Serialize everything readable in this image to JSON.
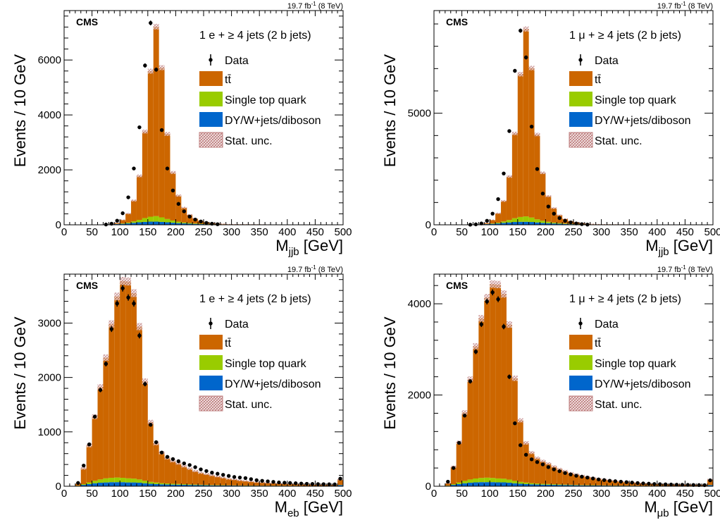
{
  "colors": {
    "ttbar": "#CC6600",
    "singletop": "#99CC00",
    "dyw": "#0066CC",
    "statunc": "#BF7F7F",
    "data": "#000000"
  },
  "legend": {
    "data": "Data",
    "ttbar": "tt̄",
    "singletop": "Single top quark",
    "dyw": "DY/W+jets/diboson",
    "stat": "Stat. unc."
  },
  "x_tick_labels": [
    "0",
    "50",
    "100",
    "150",
    "200",
    "250",
    "300",
    "350",
    "400",
    "450",
    "500"
  ],
  "chart_data": [
    {
      "type": "bar",
      "panel": "top-left",
      "lumi": "19.7 fb",
      "lumi_sup": "-1",
      "lumi_rest": " (8 TeV)",
      "experiment": "CMS",
      "channel": "1 e + ≥ 4 jets (2 b jets)",
      "ylabel": "Events / 10 GeV",
      "xlabel": "M",
      "xlabel_sub": "jjb",
      "xlabel_unit": " [GeV]",
      "xlim": [
        0,
        500
      ],
      "ylim": [
        0,
        7800
      ],
      "y_ticks": [
        0,
        2000,
        4000,
        6000
      ],
      "y_tick_labels": [
        "0",
        "2000",
        "4000",
        "6000"
      ],
      "bin_width": 10,
      "ttbar": [
        0,
        0,
        0,
        0,
        0,
        0,
        0,
        0,
        10,
        40,
        130,
        330,
        760,
        1600,
        3150,
        5300,
        6900,
        5450,
        3100,
        1750,
        950,
        540,
        300,
        180,
        110,
        70,
        45,
        30,
        20,
        10,
        8,
        5,
        4,
        3,
        2,
        1,
        1,
        0,
        0,
        0,
        0,
        0,
        0,
        0,
        0,
        0,
        0,
        0,
        0,
        0
      ],
      "singletop": [
        0,
        0,
        0,
        0,
        0,
        0,
        0,
        0,
        2,
        5,
        15,
        30,
        55,
        90,
        140,
        180,
        200,
        165,
        120,
        80,
        55,
        35,
        25,
        18,
        12,
        9,
        6,
        5,
        4,
        3,
        2,
        2,
        1,
        1,
        1,
        1,
        0,
        0,
        0,
        0,
        0,
        0,
        0,
        0,
        0,
        0,
        0,
        0,
        0,
        0
      ],
      "dyw": [
        12,
        12,
        12,
        12,
        12,
        12,
        12,
        14,
        18,
        25,
        35,
        50,
        70,
        90,
        105,
        115,
        115,
        105,
        90,
        75,
        60,
        50,
        40,
        32,
        25,
        20,
        16,
        14,
        12,
        12,
        12,
        12,
        12,
        12,
        12,
        12,
        12,
        12,
        12,
        12,
        12,
        12,
        12,
        12,
        12,
        12,
        12,
        12,
        12,
        12
      ],
      "data_x": [
        75,
        85,
        95,
        105,
        115,
        125,
        135,
        145,
        155,
        165,
        175,
        185,
        195,
        205,
        215,
        225,
        235,
        245,
        255,
        265,
        275
      ],
      "data_y": [
        10,
        40,
        150,
        420,
        1000,
        2050,
        3550,
        5800,
        7350,
        5650,
        3450,
        2050,
        1250,
        760,
        490,
        300,
        190,
        120,
        70,
        40,
        20
      ]
    },
    {
      "type": "bar",
      "panel": "top-right",
      "lumi": "19.7 fb",
      "lumi_sup": "-1",
      "lumi_rest": " (8 TeV)",
      "experiment": "CMS",
      "channel": "1 μ + ≥ 4 jets (2 b jets)",
      "ylabel": "Events / 10 GeV",
      "xlabel": "M",
      "xlabel_sub": "jjb",
      "xlabel_unit": " [GeV]",
      "xlim": [
        0,
        500
      ],
      "ylim": [
        0,
        9600
      ],
      "y_ticks": [
        0,
        5000
      ],
      "y_tick_labels": [
        "0",
        "5000"
      ],
      "bin_width": 10,
      "ttbar": [
        0,
        0,
        0,
        0,
        0,
        0,
        0,
        0,
        12,
        50,
        160,
        420,
        920,
        1950,
        3800,
        6400,
        8400,
        6700,
        3800,
        2150,
        1150,
        650,
        360,
        210,
        130,
        85,
        55,
        35,
        22,
        12,
        9,
        6,
        4,
        3,
        2,
        1,
        1,
        0,
        0,
        0,
        0,
        0,
        0,
        0,
        0,
        0,
        0,
        0,
        0,
        0
      ],
      "singletop": [
        0,
        0,
        0,
        0,
        0,
        0,
        0,
        0,
        2,
        6,
        18,
        36,
        65,
        110,
        170,
        215,
        240,
        200,
        140,
        95,
        65,
        42,
        30,
        22,
        14,
        10,
        7,
        5,
        4,
        3,
        2,
        2,
        1,
        1,
        1,
        1,
        0,
        0,
        0,
        0,
        0,
        0,
        0,
        0,
        0,
        0,
        0,
        0,
        0,
        0
      ],
      "dyw": [
        14,
        14,
        14,
        14,
        14,
        14,
        14,
        16,
        22,
        30,
        42,
        60,
        85,
        105,
        125,
        135,
        135,
        125,
        105,
        85,
        70,
        58,
        46,
        36,
        28,
        22,
        18,
        15,
        14,
        14,
        14,
        14,
        14,
        14,
        14,
        14,
        14,
        14,
        14,
        14,
        14,
        14,
        14,
        14,
        14,
        14,
        14,
        14,
        14,
        14
      ],
      "data_x": [
        65,
        75,
        85,
        95,
        105,
        115,
        125,
        135,
        145,
        155,
        165,
        175,
        185,
        195,
        205,
        215,
        225,
        235,
        245,
        255,
        265,
        275
      ],
      "data_y": [
        5,
        20,
        60,
        180,
        500,
        1150,
        2300,
        4200,
        6900,
        8700,
        7500,
        4400,
        2500,
        1400,
        820,
        500,
        300,
        180,
        110,
        60,
        30,
        10
      ]
    },
    {
      "type": "bar",
      "panel": "bottom-left",
      "lumi": "19.7 fb",
      "lumi_sup": "-1",
      "lumi_rest": " (8 TeV)",
      "experiment": "CMS",
      "channel": "1 e + ≥ 4 jets (2 b jets)",
      "ylabel": "Events / 10 GeV",
      "xlabel": "M",
      "xlabel_sub": "eb",
      "xlabel_unit": " [GeV]",
      "xlim": [
        0,
        500
      ],
      "ylim": [
        0,
        3900
      ],
      "y_ticks": [
        0,
        1000,
        2000,
        3000
      ],
      "y_tick_labels": [
        "0",
        "1000",
        "2000",
        "3000"
      ],
      "bin_width": 10,
      "ttbar": [
        0,
        0,
        40,
        290,
        680,
        1180,
        1700,
        2220,
        2830,
        3330,
        3620,
        3620,
        3410,
        2810,
        1830,
        1100,
        720,
        560,
        470,
        420,
        380,
        330,
        290,
        250,
        220,
        200,
        180,
        160,
        140,
        120,
        110,
        95,
        85,
        75,
        65,
        58,
        52,
        46,
        42,
        38,
        34,
        32,
        29,
        27,
        25,
        23,
        22,
        21,
        20,
        100
      ],
      "singletop": [
        0,
        0,
        3,
        14,
        30,
        45,
        60,
        75,
        80,
        85,
        80,
        75,
        70,
        60,
        45,
        35,
        28,
        22,
        19,
        16,
        14,
        12,
        10,
        9,
        8,
        7,
        6,
        5,
        5,
        4,
        4,
        3,
        3,
        3,
        2,
        2,
        2,
        2,
        2,
        2,
        2,
        2,
        1,
        1,
        1,
        1,
        1,
        1,
        1,
        3
      ],
      "dyw": [
        0,
        0,
        8,
        25,
        40,
        55,
        65,
        70,
        75,
        75,
        75,
        70,
        70,
        65,
        55,
        45,
        40,
        35,
        32,
        30,
        28,
        26,
        24,
        22,
        20,
        18,
        16,
        15,
        14,
        13,
        12,
        11,
        10,
        10,
        9,
        9,
        8,
        8,
        8,
        7,
        7,
        7,
        7,
        6,
        6,
        6,
        6,
        6,
        6,
        20
      ],
      "data_x": [
        25,
        35,
        45,
        55,
        65,
        75,
        85,
        95,
        105,
        115,
        125,
        135,
        145,
        155,
        165,
        175,
        185,
        195,
        205,
        215,
        225,
        235,
        245,
        255,
        265,
        275,
        285,
        295,
        305,
        315,
        325,
        335,
        345,
        355,
        365,
        375,
        385,
        395,
        405,
        415,
        425,
        435,
        445,
        455,
        465,
        475,
        485,
        495
      ],
      "data_y": [
        60,
        380,
        770,
        1280,
        1770,
        2250,
        2890,
        3360,
        3640,
        3470,
        3360,
        2770,
        1880,
        1130,
        810,
        620,
        540,
        500,
        460,
        420,
        390,
        350,
        310,
        280,
        250,
        230,
        210,
        190,
        170,
        160,
        150,
        130,
        110,
        100,
        90,
        80,
        70,
        65,
        60,
        55,
        50,
        45,
        42,
        40,
        38,
        36,
        34,
        140
      ]
    },
    {
      "type": "bar",
      "panel": "bottom-right",
      "lumi": "19.7 fb",
      "lumi_sup": "-1",
      "lumi_rest": " (8 TeV)",
      "experiment": "CMS",
      "channel": "1 μ + ≥ 4 jets (2 b jets)",
      "ylabel": "Events / 10 GeV",
      "xlabel": "M",
      "xlabel_sub": "μb",
      "xlabel_unit": " [GeV]",
      "xlim": [
        0,
        500
      ],
      "ylim": [
        0,
        4650
      ],
      "y_ticks": [
        0,
        2000,
        4000
      ],
      "y_tick_labels": [
        "0",
        "2000",
        "4000"
      ],
      "bin_width": 10,
      "ttbar": [
        0,
        0,
        50,
        380,
        880,
        1500,
        2200,
        2900,
        3500,
        3950,
        4250,
        4250,
        4050,
        3400,
        2250,
        1350,
        870,
        670,
        560,
        500,
        450,
        390,
        340,
        300,
        260,
        235,
        210,
        185,
        165,
        145,
        130,
        115,
        100,
        90,
        80,
        70,
        62,
        55,
        50,
        45,
        40,
        37,
        34,
        32,
        30,
        28,
        26,
        25,
        24,
        120
      ],
      "singletop": [
        0,
        0,
        4,
        16,
        35,
        52,
        70,
        85,
        92,
        98,
        92,
        86,
        80,
        68,
        52,
        40,
        32,
        26,
        22,
        18,
        16,
        14,
        12,
        10,
        9,
        8,
        7,
        6,
        6,
        5,
        5,
        4,
        4,
        3,
        3,
        3,
        2,
        2,
        2,
        2,
        2,
        2,
        1,
        1,
        1,
        1,
        1,
        1,
        1,
        4
      ],
      "dyw": [
        0,
        0,
        10,
        30,
        48,
        65,
        78,
        85,
        90,
        90,
        90,
        85,
        85,
        78,
        65,
        55,
        48,
        42,
        38,
        35,
        33,
        30,
        28,
        26,
        24,
        21,
        19,
        18,
        17,
        16,
        14,
        13,
        12,
        12,
        11,
        10,
        10,
        9,
        9,
        8,
        8,
        8,
        8,
        7,
        7,
        7,
        7,
        7,
        7,
        24
      ],
      "data_x": [
        25,
        35,
        45,
        55,
        65,
        75,
        85,
        95,
        105,
        115,
        125,
        135,
        145,
        155,
        165,
        175,
        185,
        195,
        205,
        215,
        225,
        235,
        245,
        255,
        265,
        275,
        285,
        295,
        305,
        315,
        325,
        335,
        345,
        355,
        365,
        375,
        385,
        395,
        405,
        415,
        425,
        435,
        445,
        455,
        465,
        475,
        485,
        495
      ],
      "data_y": [
        100,
        400,
        950,
        1550,
        2300,
        2950,
        3550,
        4050,
        4250,
        4100,
        3500,
        2400,
        1380,
        900,
        690,
        590,
        530,
        480,
        420,
        370,
        330,
        290,
        260,
        230,
        210,
        190,
        170,
        150,
        135,
        120,
        110,
        100,
        90,
        80,
        70,
        62,
        56,
        50,
        46,
        42,
        38,
        34,
        32,
        30,
        28,
        26,
        24,
        130
      ]
    }
  ]
}
